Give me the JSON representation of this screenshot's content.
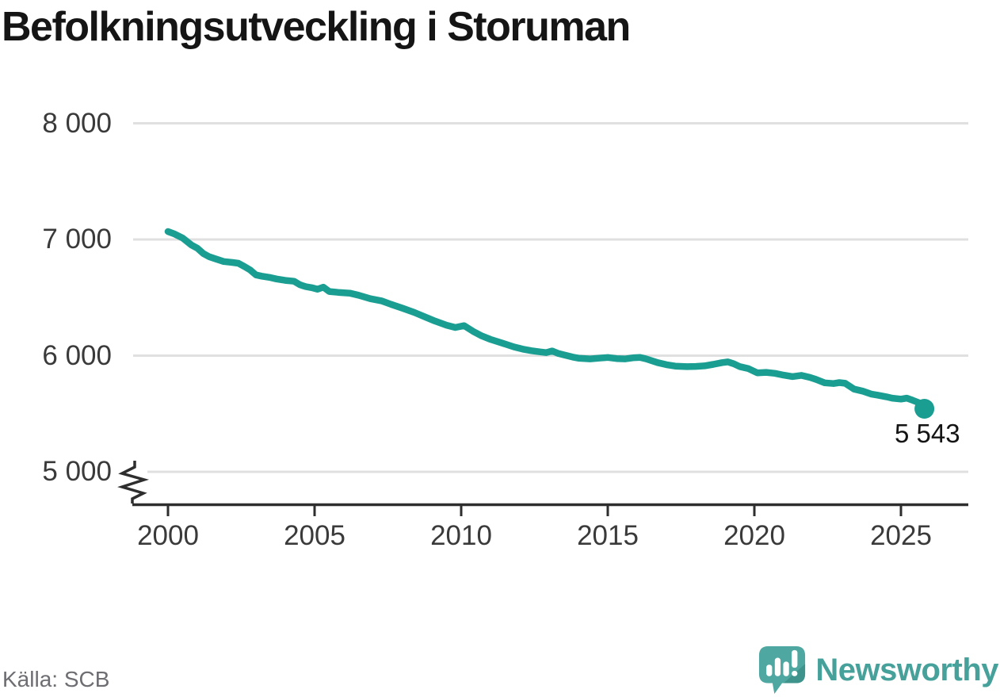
{
  "title": "Befolkningsutveckling i Storuman",
  "source": "Källa: SCB",
  "branding": {
    "name": "Newsworthy"
  },
  "colors": {
    "line": "#1b9e92",
    "grid": "#e0e0e0",
    "axis": "#2e2e2e",
    "tick_label": "#3a3a3a",
    "title": "#151515",
    "annotation": "#141414",
    "source": "#6d6d72",
    "brand": "#47a19b",
    "brand_bubble": "#4ea7a0",
    "brand_bubble_shade": "#3e948c"
  },
  "annotation": {
    "label": "5 543",
    "value": 5543
  },
  "chart_data": {
    "type": "line",
    "title": "Befolkningsutveckling i Storuman",
    "xlabel": "",
    "ylabel": "",
    "x_ticks": [
      2000,
      2005,
      2010,
      2015,
      2020,
      2025
    ],
    "y_ticks": [
      {
        "value": 8000,
        "label": "8 000"
      },
      {
        "value": 7000,
        "label": "7 000"
      },
      {
        "value": 6000,
        "label": "6 000"
      },
      {
        "value": 5000,
        "label": "5 000"
      }
    ],
    "x_range": [
      1998.7,
      2027.3
    ],
    "y_range": [
      4800,
      8000
    ],
    "y_axis_break": true,
    "grid": true,
    "legend": "none",
    "end_label": "5 543",
    "series": [
      {
        "name": "Befolkning i Storuman",
        "points": [
          [
            2000.0,
            7068
          ],
          [
            2000.2,
            7050
          ],
          [
            2000.5,
            7012
          ],
          [
            2000.8,
            6952
          ],
          [
            2001.0,
            6925
          ],
          [
            2001.2,
            6880
          ],
          [
            2001.4,
            6852
          ],
          [
            2001.6,
            6835
          ],
          [
            2001.9,
            6810
          ],
          [
            2002.2,
            6802
          ],
          [
            2002.4,
            6795
          ],
          [
            2002.6,
            6768
          ],
          [
            2002.8,
            6738
          ],
          [
            2003.0,
            6695
          ],
          [
            2003.2,
            6684
          ],
          [
            2003.5,
            6672
          ],
          [
            2003.7,
            6660
          ],
          [
            2004.0,
            6648
          ],
          [
            2004.3,
            6640
          ],
          [
            2004.5,
            6610
          ],
          [
            2004.7,
            6594
          ],
          [
            2004.9,
            6585
          ],
          [
            2005.1,
            6572
          ],
          [
            2005.3,
            6590
          ],
          [
            2005.5,
            6552
          ],
          [
            2005.8,
            6545
          ],
          [
            2006.2,
            6538
          ],
          [
            2006.5,
            6520
          ],
          [
            2006.9,
            6490
          ],
          [
            2007.3,
            6470
          ],
          [
            2007.6,
            6442
          ],
          [
            2008.0,
            6408
          ],
          [
            2008.4,
            6372
          ],
          [
            2008.8,
            6330
          ],
          [
            2009.1,
            6298
          ],
          [
            2009.5,
            6262
          ],
          [
            2009.8,
            6242
          ],
          [
            2010.1,
            6258
          ],
          [
            2010.4,
            6210
          ],
          [
            2010.7,
            6170
          ],
          [
            2011.0,
            6140
          ],
          [
            2011.4,
            6108
          ],
          [
            2011.8,
            6075
          ],
          [
            2012.1,
            6056
          ],
          [
            2012.4,
            6042
          ],
          [
            2012.7,
            6032
          ],
          [
            2012.9,
            6026
          ],
          [
            2013.1,
            6040
          ],
          [
            2013.3,
            6020
          ],
          [
            2013.5,
            6007
          ],
          [
            2013.8,
            5988
          ],
          [
            2014.0,
            5978
          ],
          [
            2014.4,
            5972
          ],
          [
            2014.7,
            5978
          ],
          [
            2015.0,
            5984
          ],
          [
            2015.3,
            5975
          ],
          [
            2015.6,
            5972
          ],
          [
            2015.9,
            5982
          ],
          [
            2016.1,
            5985
          ],
          [
            2016.3,
            5973
          ],
          [
            2016.7,
            5940
          ],
          [
            2017.0,
            5922
          ],
          [
            2017.3,
            5910
          ],
          [
            2017.7,
            5905
          ],
          [
            2018.0,
            5907
          ],
          [
            2018.3,
            5912
          ],
          [
            2018.6,
            5925
          ],
          [
            2018.9,
            5940
          ],
          [
            2019.1,
            5946
          ],
          [
            2019.3,
            5930
          ],
          [
            2019.5,
            5906
          ],
          [
            2019.8,
            5888
          ],
          [
            2020.1,
            5852
          ],
          [
            2020.4,
            5856
          ],
          [
            2020.7,
            5848
          ],
          [
            2021.0,
            5832
          ],
          [
            2021.3,
            5820
          ],
          [
            2021.6,
            5830
          ],
          [
            2021.9,
            5812
          ],
          [
            2022.1,
            5796
          ],
          [
            2022.4,
            5766
          ],
          [
            2022.7,
            5760
          ],
          [
            2022.9,
            5768
          ],
          [
            2023.1,
            5762
          ],
          [
            2023.4,
            5712
          ],
          [
            2023.7,
            5694
          ],
          [
            2024.0,
            5668
          ],
          [
            2024.2,
            5660
          ],
          [
            2024.5,
            5646
          ],
          [
            2024.7,
            5634
          ],
          [
            2025.0,
            5626
          ],
          [
            2025.2,
            5634
          ],
          [
            2025.4,
            5616
          ],
          [
            2025.6,
            5596
          ],
          [
            2025.8,
            5543
          ]
        ]
      }
    ]
  }
}
